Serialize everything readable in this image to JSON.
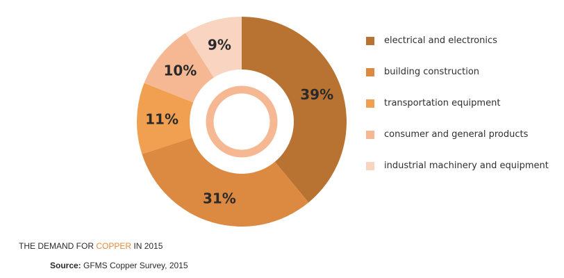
{
  "chart_data": {
    "type": "pie",
    "variant": "donut",
    "slices": [
      {
        "label": "electrical and electronics",
        "value": 39,
        "display": "39%",
        "color": "#b87333"
      },
      {
        "label": "building construction",
        "value": 31,
        "display": "31%",
        "color": "#dc8a42"
      },
      {
        "label": "transportation equipment",
        "value": 11,
        "display": "11%",
        "color": "#f0a050"
      },
      {
        "label": "consumer and general products",
        "value": 10,
        "display": "10%",
        "color": "#f5b893"
      },
      {
        "label": "industrial machinery and equipment",
        "value": 9,
        "display": "9%",
        "color": "#f9d4c0"
      }
    ],
    "legend_position": "right",
    "center_ring_color": "#f5b893"
  },
  "caption": {
    "prefix": "THE DEMAND FOR ",
    "highlight": "COPPER",
    "suffix": " IN 2015",
    "highlight_color": "#e58a3a"
  },
  "source": {
    "label": "Source:",
    "text": " GFMS Copper Survey, 2015"
  }
}
